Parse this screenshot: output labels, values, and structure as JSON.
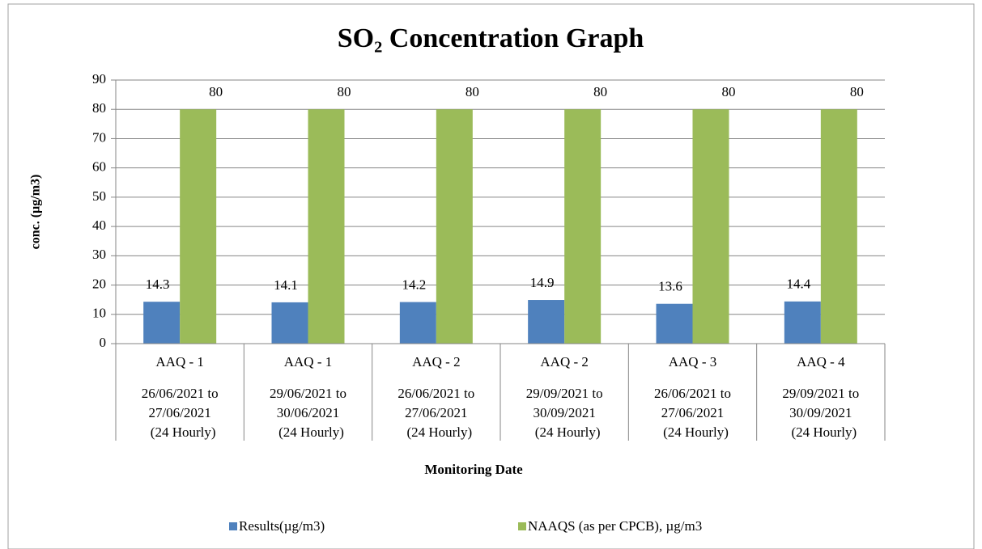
{
  "chart_data": {
    "type": "bar",
    "title": "SO₂ Concentration Graph",
    "y_label": "conc. (µg/m3)",
    "x_label": "Monitoring Date",
    "categories": [
      [
        "AAQ - 1",
        "26/06/2021 to",
        "27/06/2021",
        "(24 Hourly)"
      ],
      [
        "AAQ - 1",
        "29/06/2021 to",
        "30/06/2021",
        "(24 Hourly)"
      ],
      [
        "AAQ - 2",
        "26/06/2021 to",
        "27/06/2021",
        "(24 Hourly)"
      ],
      [
        "AAQ - 2",
        "29/09/2021 to",
        "30/09/2021",
        "(24 Hourly)"
      ],
      [
        "AAQ - 3",
        "26/06/2021 to",
        "27/06/2021",
        "(24 Hourly)"
      ],
      [
        "AAQ - 4",
        "29/09/2021 to",
        "30/09/2021",
        "(24 Hourly)"
      ]
    ],
    "series": [
      {
        "name": "Results(µg/m3)",
        "color": "#4f81bd",
        "values": [
          14.3,
          14.1,
          14.2,
          14.9,
          13.6,
          14.4
        ]
      },
      {
        "name": "NAAQS (as per CPCB), µg/m3",
        "color": "#9bbb59",
        "values": [
          80,
          80,
          80,
          80,
          80,
          80
        ]
      }
    ],
    "ylim": [
      0,
      90
    ],
    "yticks": [
      0,
      10,
      20,
      30,
      40,
      50,
      60,
      70,
      80,
      90
    ],
    "grid": true,
    "legend": "bottom"
  }
}
